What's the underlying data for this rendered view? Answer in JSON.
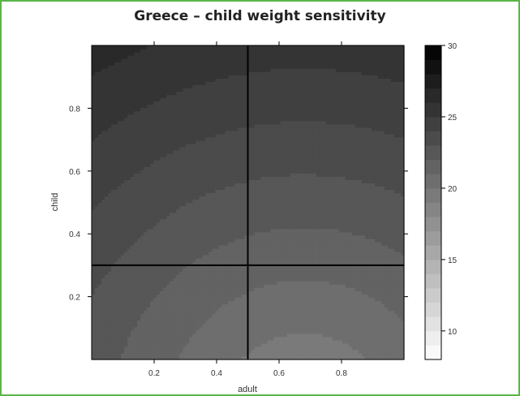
{
  "chart_data": {
    "type": "heatmap",
    "title": "Greece – child weight sensitivity",
    "xlabel": "adult",
    "ylabel": "child",
    "xlim": [
      0,
      1
    ],
    "ylim": [
      0,
      1
    ],
    "x_ticks": [
      "0.2",
      "0.4",
      "0.6",
      "0.8"
    ],
    "x_tick_values": [
      0.2,
      0.4,
      0.6,
      0.8
    ],
    "y_ticks": [
      "0.2",
      "0.4",
      "0.6",
      "0.8"
    ],
    "y_tick_values": [
      0.2,
      0.4,
      0.6,
      0.8
    ],
    "colorbar": {
      "min": 8,
      "max": 30,
      "ticks": [
        "10",
        "15",
        "20",
        "25",
        "30"
      ],
      "tick_values": [
        10,
        15,
        20,
        25,
        30
      ],
      "low_color": "#ffffff",
      "high_color": "#000000"
    },
    "reference_lines": {
      "vertical_x": 0.5,
      "horizontal_y": 0.3
    },
    "value_range_in_plot": [
      19.5,
      26.5
    ],
    "contour_center": {
      "adult": 0.68,
      "child": -0.2
    },
    "grid": false
  },
  "colors": {
    "frame_border": "#5cb548",
    "axis": "#000000",
    "reference_line": "#000000"
  }
}
